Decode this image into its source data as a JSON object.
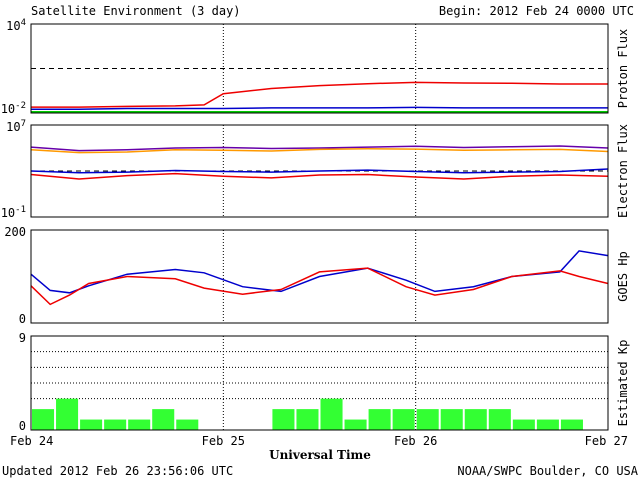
{
  "header": {
    "title": "Satellite Environment (3 day)",
    "begin": "Begin:  2012 Feb 24 0000 UTC"
  },
  "footer": {
    "updated": "Updated 2012 Feb 26 23:56:06 UTC",
    "credit": "NOAA/SWPC Boulder, CO USA"
  },
  "chart_data": [
    {
      "type": "line",
      "ylabel": "Proton Flux",
      "y_scale": "log",
      "ylim": [
        0.01,
        10000
      ],
      "y_ticks": [
        {
          "base": "10",
          "exp": "4",
          "value": 10000
        },
        {
          "base": "10",
          "exp": "-2",
          "value": 0.01
        }
      ],
      "threshold": 10,
      "x_days": [
        0,
        0.25,
        0.5,
        0.75,
        0.9,
        1.0,
        1.25,
        1.5,
        1.75,
        2.0,
        2.25,
        2.5,
        2.75,
        3.0
      ],
      "series": [
        {
          "color": "#ee0000",
          "values": [
            0.025,
            0.025,
            0.028,
            0.03,
            0.035,
            0.2,
            0.45,
            0.7,
            0.95,
            1.15,
            1.05,
            1.0,
            0.9,
            0.9
          ]
        },
        {
          "color": "#0000cc",
          "values": [
            0.018,
            0.018,
            0.02,
            0.02,
            0.02,
            0.02,
            0.022,
            0.022,
            0.022,
            0.024,
            0.022,
            0.022,
            0.022,
            0.022
          ]
        },
        {
          "color": "#00cc00",
          "values": [
            0.012,
            0.012,
            0.012,
            0.012,
            0.012,
            0.012,
            0.012,
            0.012,
            0.012,
            0.012,
            0.012,
            0.012,
            0.012,
            0.012
          ]
        }
      ]
    },
    {
      "type": "line",
      "ylabel": "Electron Flux",
      "y_scale": "log",
      "ylim": [
        0.1,
        10000000
      ],
      "y_ticks": [
        {
          "base": "10",
          "exp": "7",
          "value": 10000000
        },
        {
          "base": "10",
          "exp": "-1",
          "value": 0.1
        }
      ],
      "threshold": 1000,
      "x_days": [
        0,
        0.25,
        0.5,
        0.75,
        1.0,
        1.25,
        1.5,
        1.75,
        2.0,
        2.25,
        2.5,
        2.75,
        3.0
      ],
      "series": [
        {
          "color": "#6600aa",
          "values": [
            120000,
            60000,
            70000,
            100000,
            110000,
            90000,
            100000,
            120000,
            140000,
            110000,
            130000,
            150000,
            100000
          ]
        },
        {
          "color": "#ff9900",
          "values": [
            70000,
            40000,
            45000,
            70000,
            65000,
            55000,
            75000,
            85000,
            80000,
            65000,
            70000,
            75000,
            50000
          ]
        },
        {
          "color": "#0000cc",
          "values": [
            1000,
            700,
            800,
            1100,
            900,
            800,
            1000,
            1200,
            900,
            700,
            800,
            900,
            1500
          ]
        },
        {
          "color": "#ee0000",
          "values": [
            500,
            200,
            400,
            600,
            350,
            250,
            450,
            500,
            300,
            200,
            350,
            450,
            350
          ]
        }
      ]
    },
    {
      "type": "line",
      "ylabel": "GOES Hp",
      "ylim": [
        0,
        200
      ],
      "y_ticks": [
        {
          "base": "200",
          "exp": "",
          "value": 200
        },
        {
          "base": "0",
          "exp": "",
          "value": 0
        }
      ],
      "x_days": [
        0,
        0.1,
        0.2,
        0.3,
        0.5,
        0.75,
        0.9,
        1.1,
        1.3,
        1.5,
        1.75,
        1.95,
        2.1,
        2.3,
        2.5,
        2.75,
        2.85,
        3.0
      ],
      "series": [
        {
          "color": "#0000cc",
          "values": [
            105,
            70,
            65,
            80,
            105,
            115,
            108,
            78,
            68,
            100,
            118,
            92,
            68,
            78,
            100,
            110,
            155,
            145
          ]
        },
        {
          "color": "#ee0000",
          "values": [
            80,
            40,
            60,
            85,
            100,
            95,
            75,
            62,
            72,
            110,
            118,
            78,
            60,
            72,
            100,
            112,
            100,
            85
          ]
        }
      ]
    },
    {
      "type": "bar",
      "ylabel": "Estimated Kp",
      "ylim": [
        0,
        9
      ],
      "y_ticks": [
        {
          "base": "9",
          "exp": "",
          "value": 9
        },
        {
          "base": "0",
          "exp": "",
          "value": 0
        }
      ],
      "color": "#33ff33",
      "values": [
        2,
        3,
        1,
        1,
        1,
        2,
        1,
        0,
        0,
        0,
        2,
        2,
        3,
        1,
        2,
        2,
        2,
        2,
        2,
        2,
        1,
        1,
        1,
        0
      ]
    }
  ],
  "x_axis": {
    "ticks": [
      "Feb 24",
      "Feb 25",
      "Feb 26",
      "Feb 27"
    ],
    "label": "Universal Time"
  }
}
